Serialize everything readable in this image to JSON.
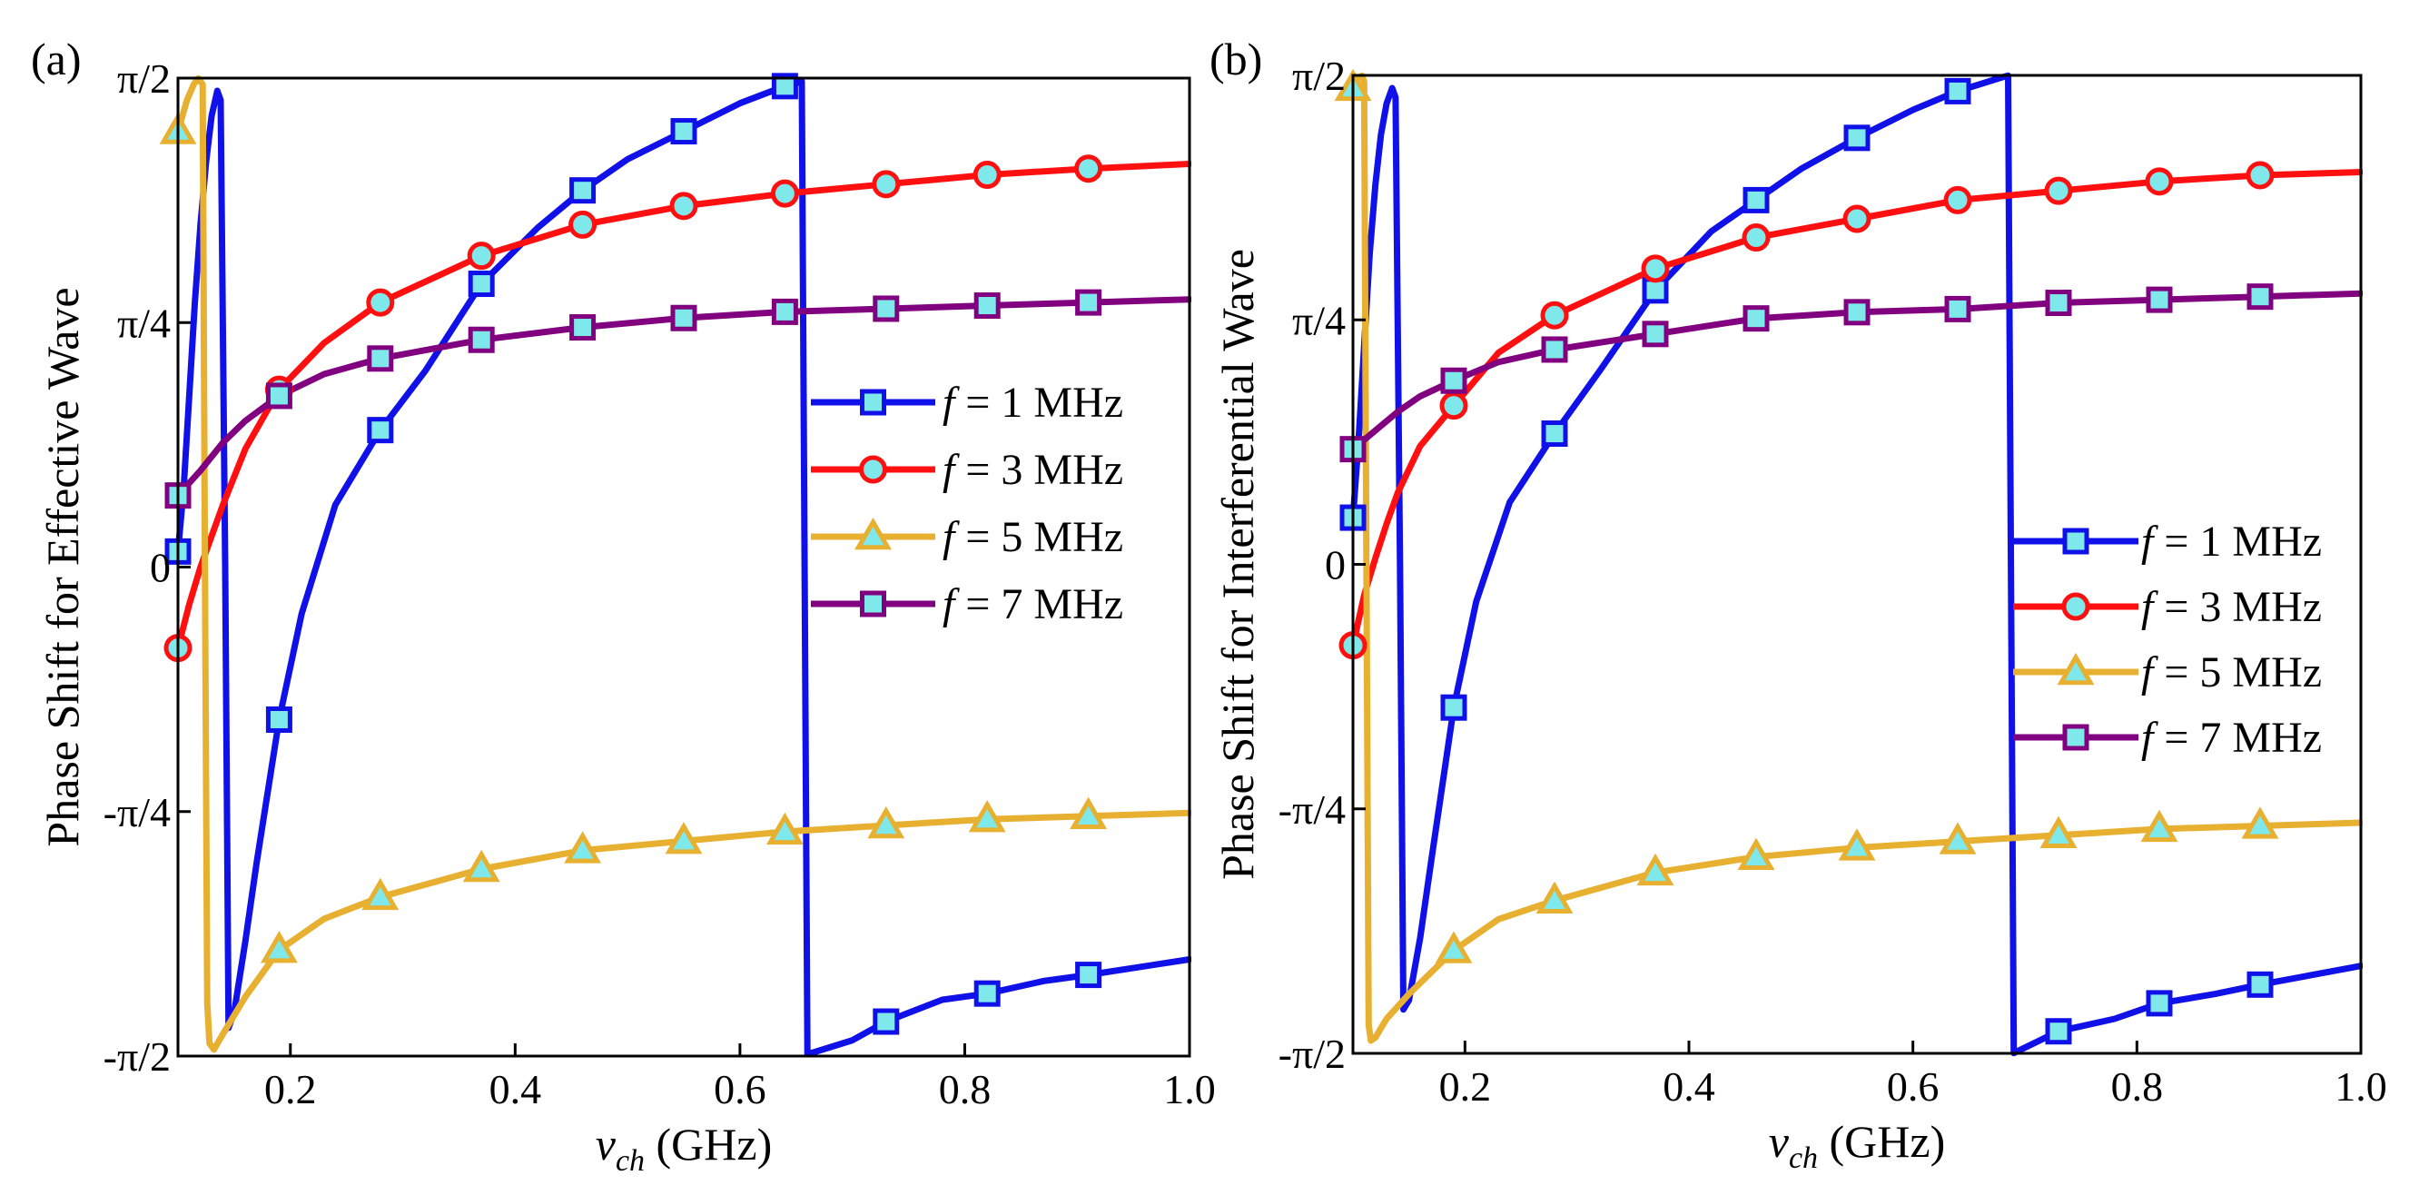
{
  "chart_data": [
    {
      "panel_label": "(a)",
      "type": "line",
      "ylabel": "Phase Shift for Effective Wave",
      "xlabel": {
        "symbol": "v",
        "subscript": "ch",
        "unit": "(GHz)"
      },
      "xlim": [
        0.1,
        1.0
      ],
      "ylim": [
        -1.5708,
        1.5708
      ],
      "xticks": [
        0.2,
        0.4,
        0.6,
        0.8,
        1.0
      ],
      "xtick_labels": [
        "0.2",
        "0.4",
        "0.6",
        "0.8",
        "1.0"
      ],
      "yticks": [
        -1.5708,
        -0.7854,
        0,
        0.7854,
        1.5708
      ],
      "ytick_labels": [
        "-π/2",
        "-π/4",
        "0",
        "π/4",
        "π/2"
      ],
      "legend_position": "center-right",
      "series": [
        {
          "name": "1 MHz",
          "legend_prefix": "f",
          "legend_eq": " = ",
          "color": "#1010e8",
          "marker": "square",
          "x": [
            0.1,
            0.105,
            0.11,
            0.115,
            0.12,
            0.125,
            0.13,
            0.135,
            0.138,
            0.142,
            0.145,
            0.15,
            0.16,
            0.17,
            0.19,
            0.21,
            0.24,
            0.28,
            0.32,
            0.37,
            0.42,
            0.46,
            0.5,
            0.55,
            0.6,
            0.64,
            0.655,
            0.66,
            0.7,
            0.73,
            0.78,
            0.82,
            0.87,
            0.91,
            1.0
          ],
          "values": [
            0.05,
            0.25,
            0.55,
            0.85,
            1.1,
            1.3,
            1.45,
            1.53,
            1.5,
            0.0,
            -1.48,
            -1.43,
            -1.2,
            -0.95,
            -0.49,
            -0.15,
            0.2,
            0.44,
            0.63,
            0.91,
            1.09,
            1.21,
            1.31,
            1.4,
            1.49,
            1.545,
            1.56,
            -1.565,
            -1.52,
            -1.46,
            -1.39,
            -1.37,
            -1.33,
            -1.31,
            -1.26
          ],
          "marker_x": [
            0.1,
            0.19,
            0.28,
            0.37,
            0.46,
            0.55,
            0.64,
            0.73,
            0.82,
            0.91
          ]
        },
        {
          "name": "3 MHz",
          "legend_prefix": "f",
          "legend_eq": " = ",
          "color": "#ff1010",
          "marker": "circle",
          "x": [
            0.1,
            0.11,
            0.12,
            0.13,
            0.14,
            0.16,
            0.19,
            0.23,
            0.28,
            0.37,
            0.46,
            0.55,
            0.64,
            0.73,
            0.82,
            0.91,
            1.0
          ],
          "values": [
            -0.26,
            -0.12,
            0.0,
            0.1,
            0.2,
            0.38,
            0.57,
            0.72,
            0.85,
            1.0,
            1.1,
            1.16,
            1.2,
            1.23,
            1.26,
            1.28,
            1.295
          ],
          "marker_x": [
            0.1,
            0.19,
            0.28,
            0.37,
            0.46,
            0.55,
            0.64,
            0.73,
            0.82,
            0.91
          ]
        },
        {
          "name": "5 MHz",
          "legend_prefix": "f",
          "legend_eq": " = ",
          "color": "#e8b030",
          "marker": "triangle",
          "x": [
            0.1,
            0.108,
            0.114,
            0.118,
            0.122,
            0.124,
            0.126,
            0.128,
            0.132,
            0.14,
            0.16,
            0.19,
            0.23,
            0.28,
            0.37,
            0.46,
            0.55,
            0.64,
            0.73,
            0.82,
            0.91,
            1.0
          ],
          "values": [
            1.4,
            1.5,
            1.55,
            1.57,
            1.55,
            0.0,
            -1.4,
            -1.53,
            -1.55,
            -1.5,
            -1.38,
            -1.23,
            -1.13,
            -1.06,
            -0.97,
            -0.91,
            -0.88,
            -0.85,
            -0.83,
            -0.81,
            -0.8,
            -0.79
          ],
          "marker_x": [
            0.1,
            0.19,
            0.28,
            0.37,
            0.46,
            0.55,
            0.64,
            0.73,
            0.82,
            0.91
          ]
        },
        {
          "name": "7 MHz",
          "legend_prefix": "f",
          "legend_eq": " = ",
          "color": "#800080",
          "marker": "square",
          "x": [
            0.1,
            0.12,
            0.14,
            0.16,
            0.19,
            0.23,
            0.28,
            0.37,
            0.46,
            0.55,
            0.64,
            0.73,
            0.82,
            0.91,
            1.0
          ],
          "values": [
            0.23,
            0.31,
            0.4,
            0.47,
            0.55,
            0.62,
            0.67,
            0.73,
            0.77,
            0.8,
            0.82,
            0.83,
            0.84,
            0.85,
            0.86
          ],
          "marker_x": [
            0.1,
            0.19,
            0.28,
            0.37,
            0.46,
            0.55,
            0.64,
            0.73,
            0.82,
            0.91
          ]
        }
      ]
    },
    {
      "panel_label": "(b)",
      "type": "line",
      "ylabel": "Phase Shift for Interferential Wave",
      "xlabel": {
        "symbol": "v",
        "subscript": "ch",
        "unit": "(GHz)"
      },
      "xlim": [
        0.1,
        1.0
      ],
      "ylim": [
        -1.5708,
        1.5708
      ],
      "xticks": [
        0.2,
        0.4,
        0.6,
        0.8,
        1.0
      ],
      "xtick_labels": [
        "0.2",
        "0.4",
        "0.6",
        "0.8",
        "1.0"
      ],
      "yticks": [
        -1.5708,
        -0.7854,
        0,
        0.7854,
        1.5708
      ],
      "ytick_labels": [
        "-π/2",
        "-π/4",
        "0",
        "π/4",
        "π/2"
      ],
      "legend_position": "center-right",
      "series": [
        {
          "name": "1 MHz",
          "legend_prefix": "f",
          "legend_eq": " = ",
          "color": "#1010e8",
          "marker": "square",
          "x": [
            0.1,
            0.105,
            0.11,
            0.115,
            0.12,
            0.125,
            0.13,
            0.135,
            0.138,
            0.142,
            0.145,
            0.15,
            0.16,
            0.17,
            0.19,
            0.21,
            0.24,
            0.28,
            0.32,
            0.37,
            0.42,
            0.46,
            0.5,
            0.55,
            0.6,
            0.64,
            0.68,
            0.685,
            0.69,
            0.73,
            0.78,
            0.82,
            0.87,
            0.91,
            1.0
          ],
          "values": [
            0.15,
            0.4,
            0.7,
            1.0,
            1.22,
            1.38,
            1.48,
            1.53,
            1.5,
            0.0,
            -1.43,
            -1.4,
            -1.2,
            -0.95,
            -0.46,
            -0.12,
            0.2,
            0.42,
            0.62,
            0.88,
            1.07,
            1.17,
            1.27,
            1.37,
            1.46,
            1.52,
            1.565,
            1.57,
            -1.57,
            -1.5,
            -1.46,
            -1.41,
            -1.38,
            -1.35,
            -1.29
          ],
          "marker_x": [
            0.1,
            0.19,
            0.28,
            0.37,
            0.46,
            0.55,
            0.64,
            0.73,
            0.82,
            0.91
          ]
        },
        {
          "name": "3 MHz",
          "legend_prefix": "f",
          "legend_eq": " = ",
          "color": "#ff1010",
          "marker": "circle",
          "x": [
            0.1,
            0.11,
            0.12,
            0.13,
            0.14,
            0.16,
            0.19,
            0.23,
            0.28,
            0.37,
            0.46,
            0.55,
            0.64,
            0.73,
            0.82,
            0.91,
            1.0
          ],
          "values": [
            -0.26,
            -0.1,
            0.02,
            0.13,
            0.23,
            0.38,
            0.51,
            0.68,
            0.8,
            0.95,
            1.05,
            1.11,
            1.17,
            1.2,
            1.23,
            1.25,
            1.26
          ],
          "marker_x": [
            0.1,
            0.19,
            0.28,
            0.37,
            0.46,
            0.55,
            0.64,
            0.73,
            0.82,
            0.91
          ]
        },
        {
          "name": "5 MHz",
          "legend_prefix": "f",
          "legend_eq": " = ",
          "color": "#e8b030",
          "marker": "triangle",
          "x": [
            0.1,
            0.104,
            0.108,
            0.11,
            0.112,
            0.114,
            0.116,
            0.12,
            0.13,
            0.15,
            0.19,
            0.23,
            0.28,
            0.37,
            0.46,
            0.55,
            0.64,
            0.73,
            0.82,
            0.91,
            1.0
          ],
          "values": [
            1.53,
            1.56,
            1.57,
            1.55,
            0.0,
            -1.48,
            -1.53,
            -1.52,
            -1.46,
            -1.38,
            -1.24,
            -1.14,
            -1.08,
            -0.99,
            -0.94,
            -0.91,
            -0.89,
            -0.87,
            -0.85,
            -0.84,
            -0.83
          ],
          "marker_x": [
            0.1,
            0.19,
            0.28,
            0.37,
            0.46,
            0.55,
            0.64,
            0.73,
            0.82,
            0.91
          ]
        },
        {
          "name": "7 MHz",
          "legend_prefix": "f",
          "legend_eq": " = ",
          "color": "#800080",
          "marker": "square",
          "x": [
            0.1,
            0.12,
            0.14,
            0.16,
            0.19,
            0.23,
            0.28,
            0.37,
            0.46,
            0.55,
            0.64,
            0.73,
            0.82,
            0.91,
            1.0
          ],
          "values": [
            0.37,
            0.43,
            0.49,
            0.54,
            0.59,
            0.65,
            0.69,
            0.74,
            0.79,
            0.81,
            0.82,
            0.84,
            0.85,
            0.86,
            0.87
          ],
          "marker_x": [
            0.1,
            0.19,
            0.28,
            0.37,
            0.46,
            0.55,
            0.64,
            0.73,
            0.82,
            0.91
          ]
        }
      ]
    }
  ]
}
